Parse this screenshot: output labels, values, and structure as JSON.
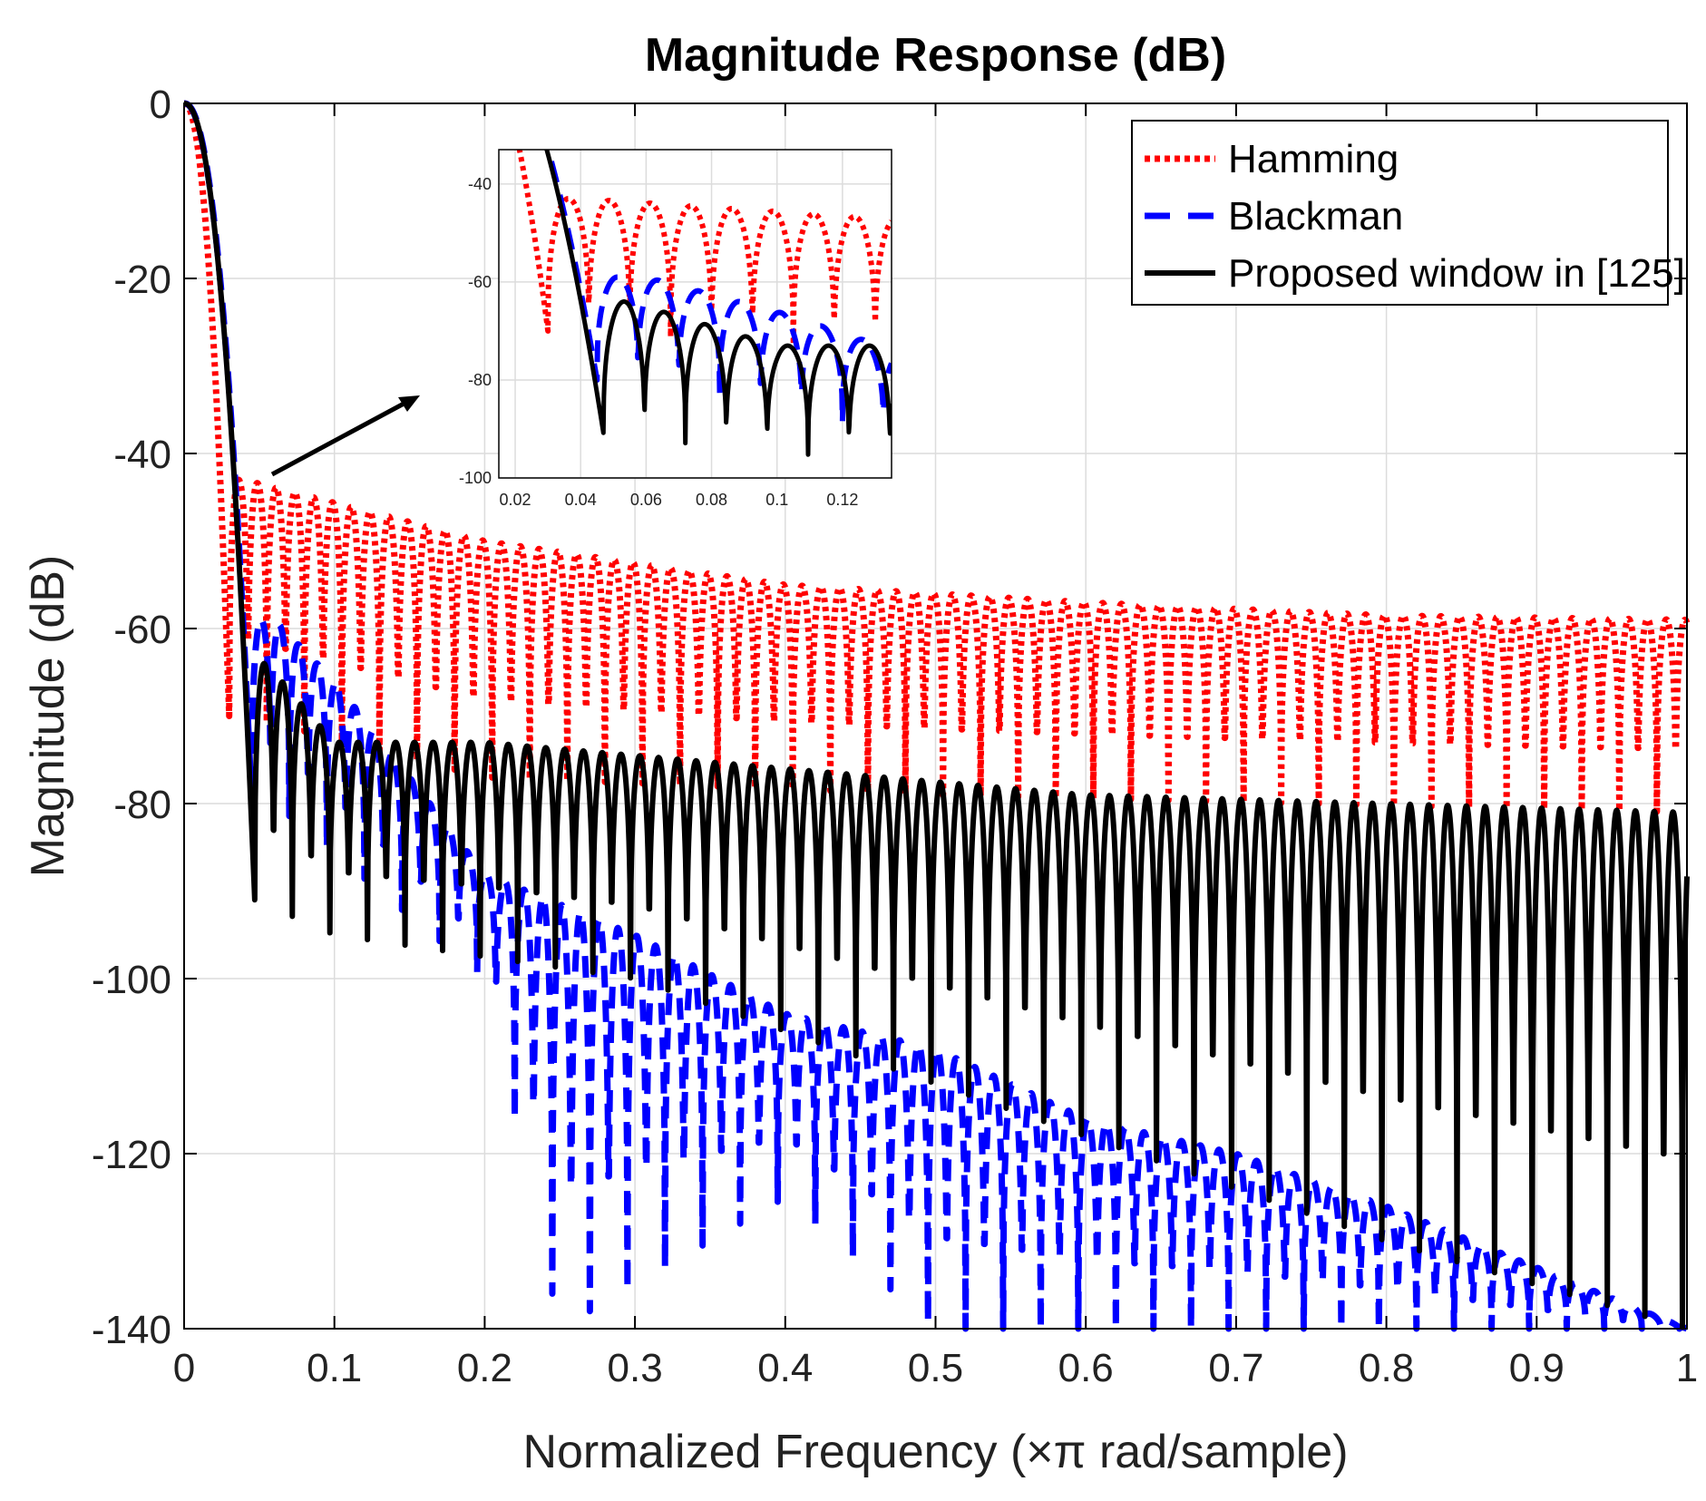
{
  "chart_data": {
    "type": "line",
    "title": "Magnitude Response (dB)",
    "xlabel": "Normalized Frequency (×π rad/sample)",
    "ylabel": "Magnitude (dB)",
    "xlim": [
      0,
      1
    ],
    "ylim": [
      -140,
      0
    ],
    "xticks": [
      0,
      0.1,
      0.2,
      0.3,
      0.4,
      0.5,
      0.6,
      0.7,
      0.8,
      0.9,
      1
    ],
    "xtick_labels": [
      "0",
      "0.1",
      "0.2",
      "0.3",
      "0.4",
      "0.5",
      "0.6",
      "0.7",
      "0.8",
      "0.9",
      "1"
    ],
    "yticks": [
      0,
      -20,
      -40,
      -60,
      -80,
      -100,
      -120,
      -140
    ],
    "ytick_labels": [
      "0",
      "-20",
      "-40",
      "-60",
      "-80",
      "-100",
      "-120",
      "-140"
    ],
    "grid": true,
    "legend_position": "top-right",
    "series": [
      {
        "name": "Hamming",
        "color": "#ff0000",
        "style": "dotted",
        "mainlobe_null": 0.03,
        "ripple_period": 0.0125,
        "sidelobe_peaks": [
          [
            0.04,
            -43
          ],
          [
            0.2,
            -50
          ],
          [
            0.4,
            -55
          ],
          [
            0.6,
            -57
          ],
          [
            0.8,
            -58.5
          ],
          [
            1.0,
            -59
          ]
        ],
        "sidelobe_floors": [
          [
            0.04,
            -70
          ],
          [
            0.2,
            -77
          ],
          [
            0.5,
            -79
          ],
          [
            1.0,
            -81
          ]
        ]
      },
      {
        "name": "Blackman",
        "color": "#0000ff",
        "style": "dashed",
        "mainlobe_null": 0.045,
        "ripple_period": 0.0125,
        "sidelobe_peaks": [
          [
            0.06,
            -59
          ],
          [
            0.1,
            -66
          ],
          [
            0.2,
            -88
          ],
          [
            0.3,
            -95
          ],
          [
            0.4,
            -104
          ],
          [
            0.5,
            -108
          ],
          [
            0.6,
            -116
          ],
          [
            0.7,
            -120
          ],
          [
            0.8,
            -126
          ],
          [
            0.9,
            -133
          ],
          [
            1.0,
            -140
          ]
        ],
        "sidelobe_floors": [
          [
            0.06,
            -80
          ],
          [
            0.2,
            -100
          ],
          [
            0.25,
            -140
          ],
          [
            0.4,
            -125
          ],
          [
            0.5,
            -140
          ],
          [
            1.0,
            -140
          ]
        ]
      },
      {
        "name": "Proposed window in [125]",
        "color": "#000000",
        "style": "solid",
        "mainlobe_null": 0.047,
        "ripple_period": 0.0125,
        "sidelobe_peaks": [
          [
            0.055,
            -64
          ],
          [
            0.1,
            -73
          ],
          [
            0.2,
            -73
          ],
          [
            0.4,
            -76
          ],
          [
            0.6,
            -79
          ],
          [
            0.8,
            -80
          ],
          [
            1.0,
            -81
          ]
        ],
        "sidelobe_floors": [
          [
            0.047,
            -91
          ],
          [
            0.1,
            -95
          ],
          [
            0.3,
            -100
          ],
          [
            0.6,
            -118
          ],
          [
            0.8,
            -130
          ],
          [
            1.0,
            -140
          ]
        ]
      }
    ],
    "inset": {
      "xlim": [
        0.015,
        0.135
      ],
      "ylim": [
        -100,
        -33
      ],
      "xticks": [
        0.02,
        0.04,
        0.06,
        0.08,
        0.1,
        0.12
      ],
      "xtick_labels": [
        "0.02",
        "0.04",
        "0.06",
        "0.08",
        "0.1",
        "0.12"
      ],
      "yticks": [
        -40,
        -60,
        -80,
        -100
      ],
      "ytick_labels": [
        "-40",
        "-60",
        "-80",
        "-100"
      ]
    }
  }
}
